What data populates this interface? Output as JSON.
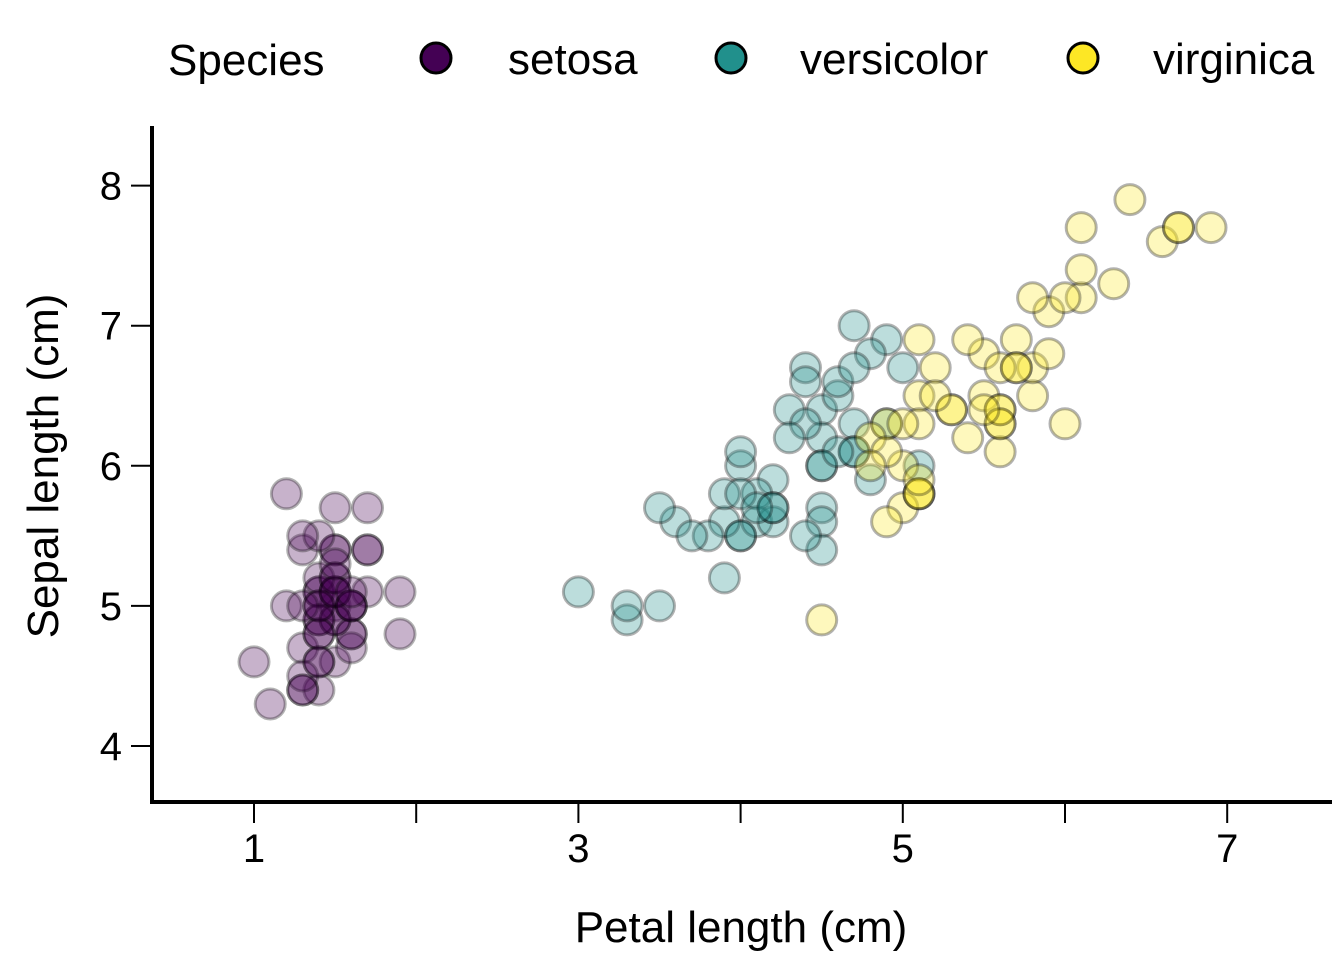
{
  "chart_data": {
    "type": "scatter",
    "title": "",
    "xlabel": "Petal length (cm)",
    "ylabel": "Sepal length (cm)",
    "xlim": [
      0.4,
      7.7
    ],
    "ylim": [
      3.6,
      8.4
    ],
    "x_ticks": [
      1,
      2,
      3,
      4,
      5,
      6,
      7
    ],
    "x_tick_labels": [
      "1",
      "",
      "3",
      "",
      "5",
      "",
      "7"
    ],
    "y_ticks": [
      4,
      5,
      6,
      7,
      8
    ],
    "y_tick_labels": [
      "4",
      "5",
      "6",
      "7",
      "8"
    ],
    "grid": false,
    "legend": {
      "title": "Species",
      "placement": "top",
      "entries": [
        "setosa",
        "versicolor",
        "virginica"
      ]
    },
    "point_alpha": 0.3,
    "series": [
      {
        "name": "setosa",
        "color": "#440154",
        "points": [
          [
            1.4,
            5.1
          ],
          [
            1.4,
            4.9
          ],
          [
            1.3,
            4.7
          ],
          [
            1.5,
            4.6
          ],
          [
            1.4,
            5.0
          ],
          [
            1.7,
            5.4
          ],
          [
            1.4,
            4.6
          ],
          [
            1.5,
            5.0
          ],
          [
            1.4,
            4.4
          ],
          [
            1.5,
            4.9
          ],
          [
            1.5,
            5.4
          ],
          [
            1.6,
            4.8
          ],
          [
            1.4,
            4.8
          ],
          [
            1.1,
            4.3
          ],
          [
            1.2,
            5.8
          ],
          [
            1.5,
            5.7
          ],
          [
            1.3,
            5.4
          ],
          [
            1.4,
            5.1
          ],
          [
            1.7,
            5.7
          ],
          [
            1.5,
            5.1
          ],
          [
            1.7,
            5.4
          ],
          [
            1.5,
            5.1
          ],
          [
            1.0,
            4.6
          ],
          [
            1.7,
            5.1
          ],
          [
            1.9,
            4.8
          ],
          [
            1.6,
            5.0
          ],
          [
            1.6,
            5.0
          ],
          [
            1.5,
            5.2
          ],
          [
            1.4,
            5.2
          ],
          [
            1.6,
            4.7
          ],
          [
            1.6,
            4.8
          ],
          [
            1.5,
            5.4
          ],
          [
            1.5,
            5.2
          ],
          [
            1.4,
            5.5
          ],
          [
            1.5,
            4.9
          ],
          [
            1.2,
            5.0
          ],
          [
            1.3,
            5.5
          ],
          [
            1.4,
            4.9
          ],
          [
            1.3,
            4.4
          ],
          [
            1.5,
            5.1
          ],
          [
            1.3,
            5.0
          ],
          [
            1.3,
            4.5
          ],
          [
            1.3,
            4.4
          ],
          [
            1.6,
            5.0
          ],
          [
            1.9,
            5.1
          ],
          [
            1.4,
            4.8
          ],
          [
            1.6,
            5.1
          ],
          [
            1.4,
            4.6
          ],
          [
            1.5,
            5.3
          ],
          [
            1.4,
            5.0
          ]
        ]
      },
      {
        "name": "versicolor",
        "color": "#21908C",
        "points": [
          [
            4.7,
            7.0
          ],
          [
            4.5,
            6.4
          ],
          [
            4.9,
            6.9
          ],
          [
            4.0,
            5.5
          ],
          [
            4.6,
            6.5
          ],
          [
            4.5,
            5.7
          ],
          [
            4.7,
            6.3
          ],
          [
            3.3,
            4.9
          ],
          [
            4.6,
            6.6
          ],
          [
            3.9,
            5.2
          ],
          [
            3.5,
            5.0
          ],
          [
            4.2,
            5.9
          ],
          [
            4.0,
            6.0
          ],
          [
            4.7,
            6.1
          ],
          [
            3.6,
            5.6
          ],
          [
            4.4,
            6.7
          ],
          [
            4.5,
            5.6
          ],
          [
            4.1,
            5.8
          ],
          [
            4.5,
            6.2
          ],
          [
            3.9,
            5.6
          ],
          [
            4.8,
            5.9
          ],
          [
            4.0,
            6.1
          ],
          [
            4.9,
            6.3
          ],
          [
            4.7,
            6.1
          ],
          [
            4.3,
            6.4
          ],
          [
            4.4,
            6.6
          ],
          [
            4.8,
            6.8
          ],
          [
            5.0,
            6.7
          ],
          [
            4.5,
            6.0
          ],
          [
            3.5,
            5.7
          ],
          [
            3.8,
            5.5
          ],
          [
            3.7,
            5.5
          ],
          [
            3.9,
            5.8
          ],
          [
            5.1,
            6.0
          ],
          [
            4.5,
            5.4
          ],
          [
            4.5,
            6.0
          ],
          [
            4.7,
            6.7
          ],
          [
            4.4,
            6.3
          ],
          [
            4.1,
            5.6
          ],
          [
            4.0,
            5.5
          ],
          [
            4.4,
            5.5
          ],
          [
            4.6,
            6.1
          ],
          [
            4.0,
            5.8
          ],
          [
            3.3,
            5.0
          ],
          [
            4.2,
            5.6
          ],
          [
            4.2,
            5.7
          ],
          [
            4.2,
            5.7
          ],
          [
            4.3,
            6.2
          ],
          [
            3.0,
            5.1
          ],
          [
            4.1,
            5.7
          ]
        ]
      },
      {
        "name": "virginica",
        "color": "#FDE725",
        "points": [
          [
            6.0,
            6.3
          ],
          [
            5.1,
            5.8
          ],
          [
            5.9,
            7.1
          ],
          [
            5.6,
            6.3
          ],
          [
            5.8,
            6.5
          ],
          [
            6.6,
            7.6
          ],
          [
            4.5,
            4.9
          ],
          [
            6.3,
            7.3
          ],
          [
            5.8,
            6.7
          ],
          [
            6.1,
            7.2
          ],
          [
            5.1,
            6.5
          ],
          [
            5.3,
            6.4
          ],
          [
            5.5,
            6.8
          ],
          [
            5.0,
            5.7
          ],
          [
            5.1,
            5.8
          ],
          [
            5.3,
            6.4
          ],
          [
            5.5,
            6.5
          ],
          [
            6.7,
            7.7
          ],
          [
            6.9,
            7.7
          ],
          [
            5.0,
            6.0
          ],
          [
            5.7,
            6.9
          ],
          [
            4.9,
            5.6
          ],
          [
            6.7,
            7.7
          ],
          [
            4.9,
            6.3
          ],
          [
            5.7,
            6.7
          ],
          [
            6.0,
            7.2
          ],
          [
            4.8,
            6.2
          ],
          [
            4.9,
            6.1
          ],
          [
            5.6,
            6.4
          ],
          [
            5.8,
            7.2
          ],
          [
            6.1,
            7.4
          ],
          [
            6.4,
            7.9
          ],
          [
            5.6,
            6.4
          ],
          [
            5.1,
            6.3
          ],
          [
            5.6,
            6.1
          ],
          [
            6.1,
            7.7
          ],
          [
            5.6,
            6.3
          ],
          [
            5.5,
            6.4
          ],
          [
            4.8,
            6.0
          ],
          [
            5.4,
            6.9
          ],
          [
            5.6,
            6.7
          ],
          [
            5.1,
            6.9
          ],
          [
            5.1,
            5.8
          ],
          [
            5.9,
            6.8
          ],
          [
            5.7,
            6.7
          ],
          [
            5.2,
            6.7
          ],
          [
            5.0,
            6.3
          ],
          [
            5.2,
            6.5
          ],
          [
            5.4,
            6.2
          ],
          [
            5.1,
            5.9
          ]
        ]
      }
    ]
  }
}
